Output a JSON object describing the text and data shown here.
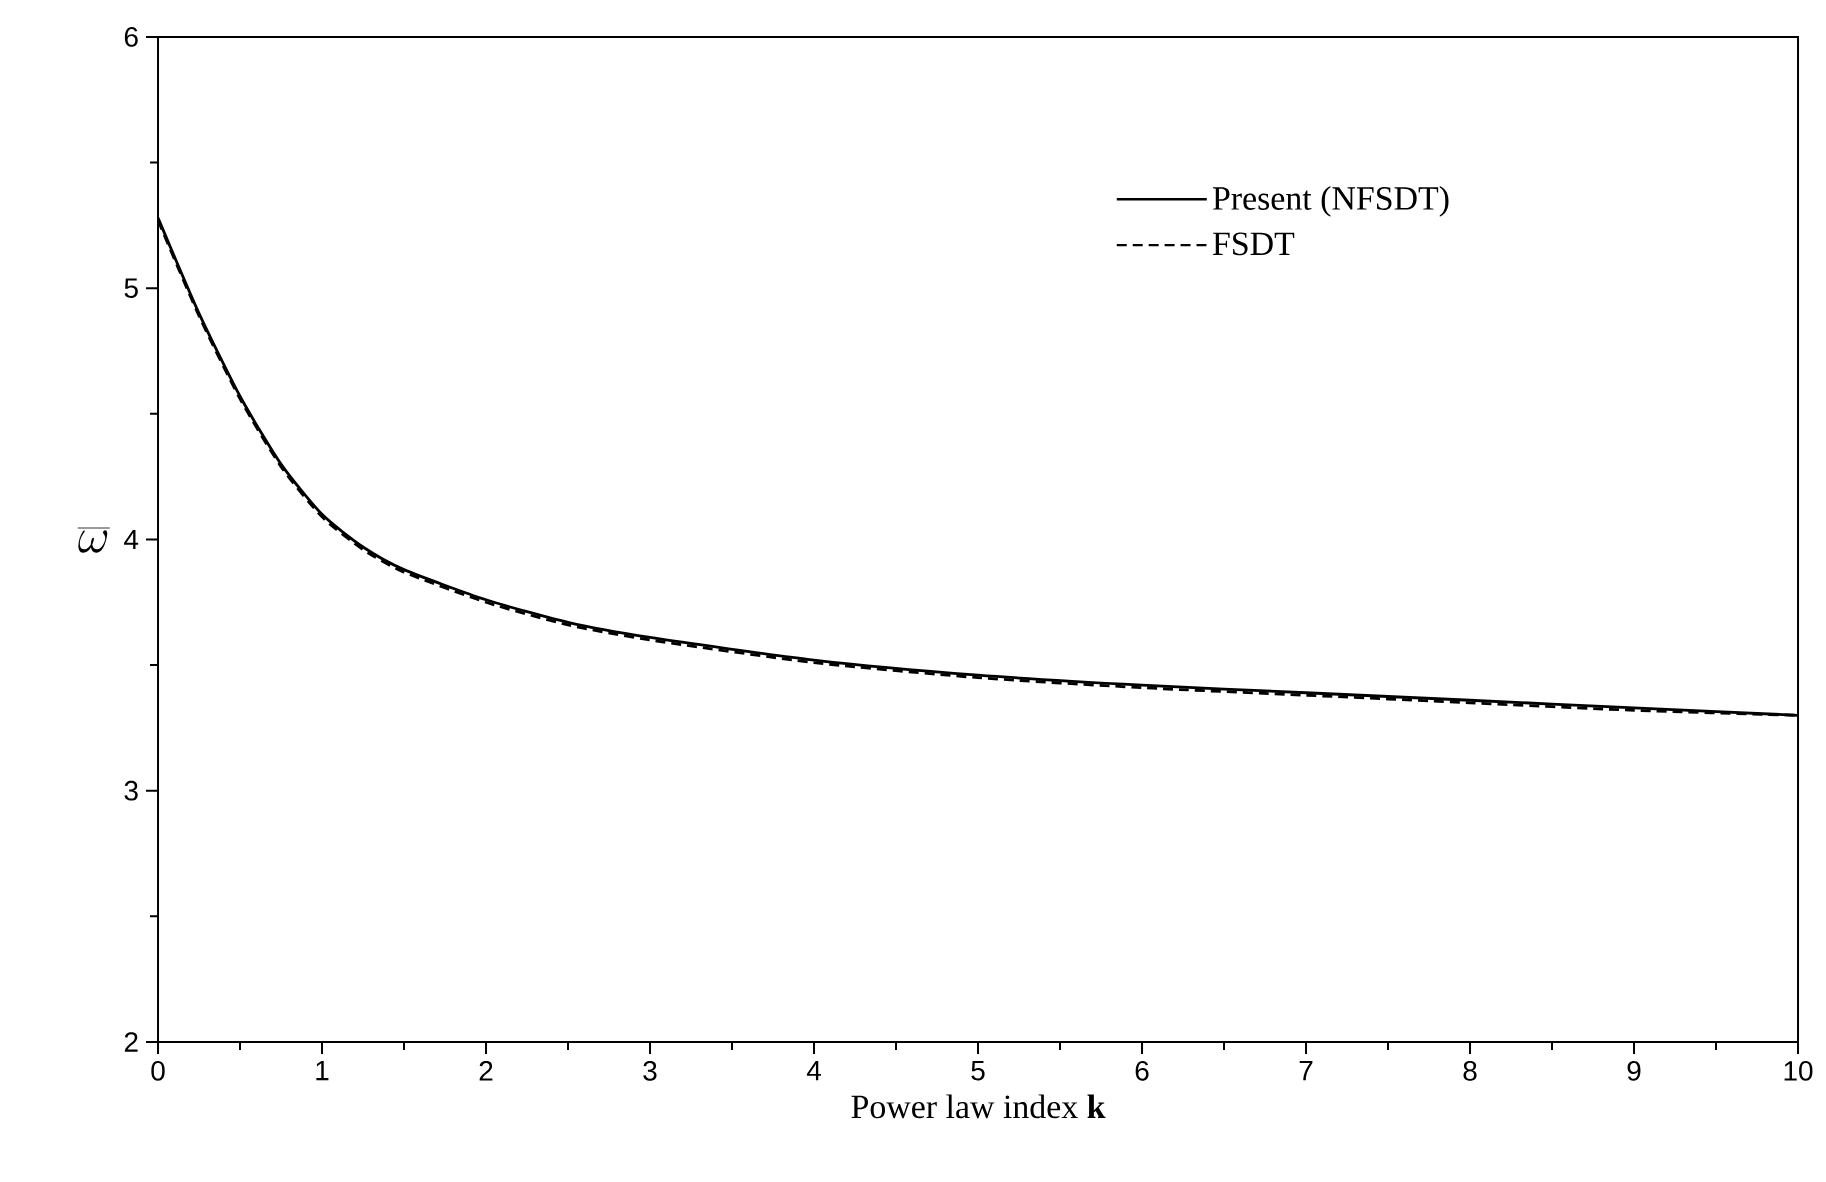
{
  "chart_data": {
    "type": "line",
    "xlabel": "Power law index **k**",
    "ylabel": "\\overline{\\omega}",
    "x": [
      0,
      0.25,
      0.5,
      0.75,
      1,
      1.25,
      1.5,
      2,
      2.5,
      3,
      4,
      5,
      6,
      7,
      8,
      9,
      10
    ],
    "series": [
      {
        "name": "Present (NFSDT)",
        "color": "#000000",
        "line_style": "solid",
        "values": [
          5.28,
          4.9,
          4.57,
          4.3,
          4.1,
          3.97,
          3.88,
          3.76,
          3.67,
          3.61,
          3.52,
          3.46,
          3.42,
          3.39,
          3.36,
          3.33,
          3.3
        ]
      },
      {
        "name": "FSDT",
        "color": "#000000",
        "line_style": "dashed",
        "values": [
          5.27,
          4.89,
          4.56,
          4.29,
          4.09,
          3.96,
          3.87,
          3.75,
          3.66,
          3.6,
          3.51,
          3.45,
          3.41,
          3.38,
          3.35,
          3.32,
          3.3
        ]
      }
    ],
    "xlim": [
      0,
      10
    ],
    "ylim": [
      2,
      6
    ],
    "xticks": [
      0,
      1,
      2,
      3,
      4,
      5,
      6,
      7,
      8,
      9,
      10
    ],
    "yticks": [
      2,
      3,
      4,
      5,
      6
    ],
    "grid": false,
    "legend": "top right",
    "marker": "none"
  }
}
